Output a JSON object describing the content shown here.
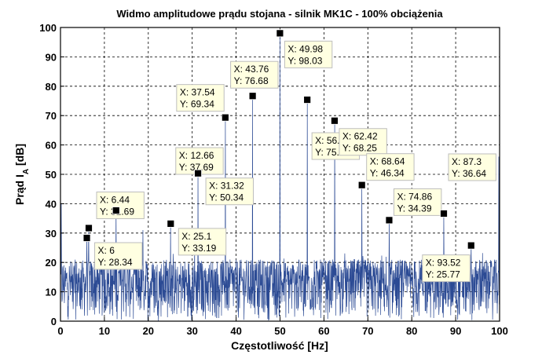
{
  "chart_data": {
    "type": "line",
    "title": "Widmo amplitudowe prądu stojana - silnik MK1C - 100% obciążenia",
    "xlabel": "Częstotliwość [Hz]",
    "ylabel": "Prąd I_A [dB]",
    "xlim": [
      0,
      100
    ],
    "ylim": [
      0,
      100
    ],
    "xticks": [
      0,
      10,
      20,
      30,
      40,
      50,
      60,
      70,
      80,
      90,
      100
    ],
    "yticks": [
      0,
      10,
      20,
      30,
      40,
      50,
      60,
      70,
      80,
      90,
      100
    ],
    "grid": true,
    "colors": {
      "series": "#2b4a94",
      "marker": "#000000",
      "datatip_bg": "#ffffe1"
    },
    "noise_floor_db": [
      0,
      21
    ],
    "peaks": [
      {
        "x": 0.2,
        "y": 40
      },
      {
        "x": 6,
        "y": 28.34
      },
      {
        "x": 6.44,
        "y": 31.69
      },
      {
        "x": 12.66,
        "y": 37.69
      },
      {
        "x": 18.8,
        "y": 31
      },
      {
        "x": 25.1,
        "y": 33.19
      },
      {
        "x": 31.32,
        "y": 50.34
      },
      {
        "x": 37.54,
        "y": 69.34
      },
      {
        "x": 43.76,
        "y": 76.68
      },
      {
        "x": 49.98,
        "y": 98.03
      },
      {
        "x": 56.2,
        "y": 75.39
      },
      {
        "x": 62.42,
        "y": 68.25
      },
      {
        "x": 68.64,
        "y": 46.34
      },
      {
        "x": 74.86,
        "y": 34.39
      },
      {
        "x": 87.3,
        "y": 36.64
      },
      {
        "x": 93.52,
        "y": 25.77
      },
      {
        "x": 99.8,
        "y": 56
      }
    ],
    "datatips": [
      {
        "x_label": "X: 6",
        "y_label": "Y: 28.34",
        "x": 6,
        "y": 28.34
      },
      {
        "x_label": "X: 6.44",
        "y_label": "Y: 31.69",
        "x": 6.44,
        "y": 31.69
      },
      {
        "x_label": "X: 12.66",
        "y_label": "Y: 37.69",
        "x": 12.66,
        "y": 37.69
      },
      {
        "x_label": "X: 25.1",
        "y_label": "Y: 33.19",
        "x": 25.1,
        "y": 33.19
      },
      {
        "x_label": "X: 31.32",
        "y_label": "Y: 50.34",
        "x": 31.32,
        "y": 50.34
      },
      {
        "x_label": "X: 37.54",
        "y_label": "Y: 69.34",
        "x": 37.54,
        "y": 69.34
      },
      {
        "x_label": "X: 43.76",
        "y_label": "Y: 76.68",
        "x": 43.76,
        "y": 76.68
      },
      {
        "x_label": "X: 49.98",
        "y_label": "Y: 98.03",
        "x": 49.98,
        "y": 98.03
      },
      {
        "x_label": "X: 56.2",
        "y_label": "Y: 75.39",
        "x": 56.2,
        "y": 75.39
      },
      {
        "x_label": "X: 62.42",
        "y_label": "Y: 68.25",
        "x": 62.42,
        "y": 68.25
      },
      {
        "x_label": "X: 68.64",
        "y_label": "Y: 46.34",
        "x": 68.64,
        "y": 46.34
      },
      {
        "x_label": "X: 74.86",
        "y_label": "Y: 34.39",
        "x": 74.86,
        "y": 34.39
      },
      {
        "x_label": "X: 87.3",
        "y_label": "Y: 36.64",
        "x": 87.3,
        "y": 36.64
      },
      {
        "x_label": "X: 93.52",
        "y_label": "Y: 25.77",
        "x": 93.52,
        "y": 25.77
      }
    ]
  }
}
